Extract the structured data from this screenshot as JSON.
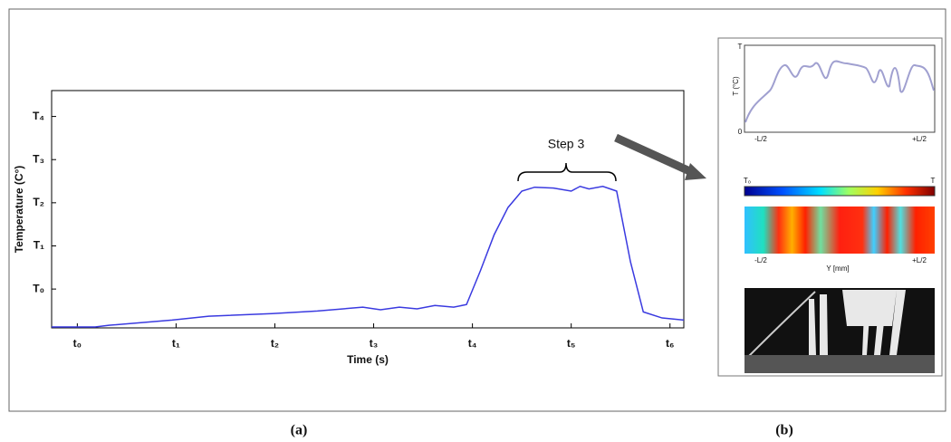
{
  "chart_data": {
    "type": "line",
    "xlabel": "Time (s)",
    "ylabel": "Temperature (C°)",
    "annotation": "Step 3",
    "x": [
      -0.26,
      0.18,
      0.32,
      0.96,
      1.33,
      1.97,
      2.43,
      2.89,
      3.07,
      3.26,
      3.44,
      3.62,
      3.81,
      3.94,
      4.08,
      4.22,
      4.36,
      4.5,
      4.63,
      4.82,
      5.0,
      5.09,
      5.18,
      5.32,
      5.46,
      5.6,
      5.73,
      5.92,
      6.14
    ],
    "values": [
      -0.88,
      -0.88,
      -0.84,
      -0.72,
      -0.63,
      -0.57,
      -0.51,
      -0.42,
      -0.48,
      -0.42,
      -0.46,
      -0.38,
      -0.42,
      -0.36,
      0.42,
      1.26,
      1.89,
      2.27,
      2.36,
      2.34,
      2.27,
      2.38,
      2.32,
      2.38,
      2.27,
      0.63,
      -0.53,
      -0.67,
      -0.72
    ],
    "color": "#3a3ae0",
    "xlim": [
      -0.26,
      6.14
    ],
    "ylim": [
      -0.9,
      4.6
    ],
    "xticks": [
      {
        "value": 0,
        "label": "t₀"
      },
      {
        "value": 1,
        "label": "t₁"
      },
      {
        "value": 2,
        "label": "t₂"
      },
      {
        "value": 3,
        "label": "t₃"
      },
      {
        "value": 4,
        "label": "t₄"
      },
      {
        "value": 5,
        "label": "t₅"
      },
      {
        "value": 6,
        "label": "t₆"
      }
    ],
    "yticks": [
      {
        "value": 0,
        "label": "T₀"
      },
      {
        "value": 1,
        "label": "T₁"
      },
      {
        "value": 2,
        "label": "T₂"
      },
      {
        "value": 3,
        "label": "T₃"
      },
      {
        "value": 4,
        "label": "T₄"
      }
    ],
    "grid": false
  },
  "captions": [
    "(a)",
    "(b)"
  ],
  "panel_b": {
    "plot_ylabel": "T (°C)",
    "plot_ytop": "T",
    "plot_y0": "0",
    "plot_xleft": "-L/2",
    "plot_xright": "+L/2",
    "colorbar_left": "T₀",
    "colorbar_right": "T",
    "map_xleft": "-L/2",
    "map_xlabel": "Y [mm]",
    "map_xright": "+L/2"
  }
}
